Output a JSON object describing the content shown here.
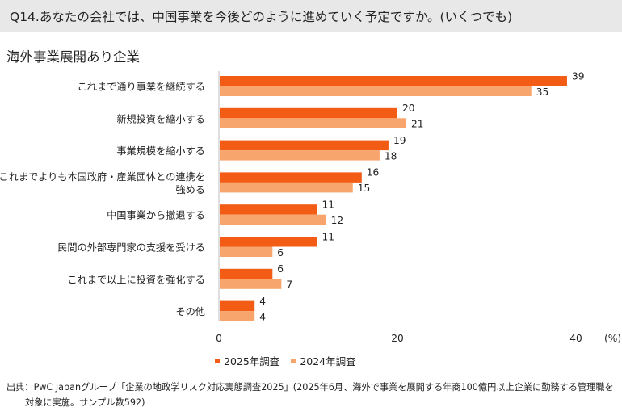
{
  "header": {
    "question": "Q14.あなたの会社では、中国事業を今後どのように進めていく予定ですか。(いくつでも)"
  },
  "subtitle": "海外事業展開あり企業",
  "colors": {
    "series2025": "#f25c14",
    "series2024": "#f7a56d"
  },
  "chart_data": {
    "type": "bar",
    "orientation": "horizontal",
    "categories": [
      [
        "これまで通り事業を継続する"
      ],
      [
        "新規投資を縮小する"
      ],
      [
        "事業規模を縮小する"
      ],
      [
        "これまでよりも本国政府・産業団体との連携を",
        "強める"
      ],
      [
        "中国事業から撤退する"
      ],
      [
        "民間の外部専門家の支援を受ける"
      ],
      [
        "これまで以上に投資を強化する"
      ],
      [
        "その他"
      ]
    ],
    "series": [
      {
        "name": "2025年調査",
        "values": [
          39,
          20,
          19,
          16,
          11,
          11,
          6,
          4
        ]
      },
      {
        "name": "2024年調査",
        "values": [
          35,
          21,
          18,
          15,
          12,
          6,
          7,
          4
        ]
      }
    ],
    "xlim": [
      0,
      40
    ],
    "xticks": [
      "0",
      "20",
      "40"
    ],
    "unit_label": "(%)"
  },
  "legend": {
    "item1": "2025年調査",
    "item2": "2024年調査"
  },
  "source": {
    "line1": "出典：PwC Japanグループ「企業の地政学リスク対応実態調査2025」(2025年6月、海外で事業を展開する年商100億円以上企業に勤務する管理職を",
    "line2": "対象に実施。サンプル数592)"
  }
}
